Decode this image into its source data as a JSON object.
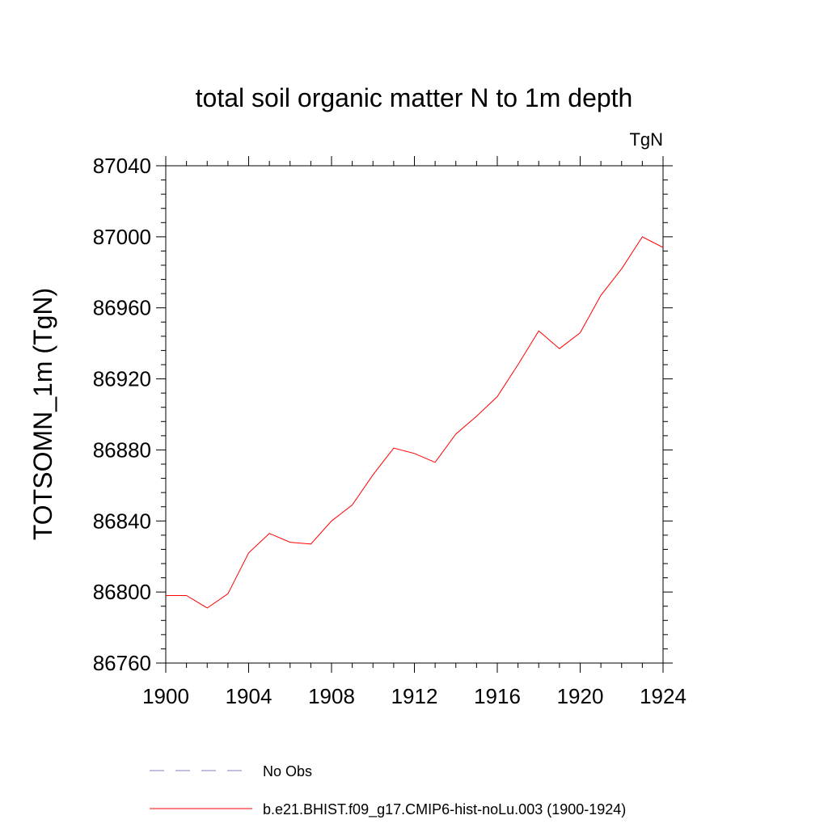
{
  "chart_data": {
    "type": "line",
    "title": "total soil organic matter N to 1m depth",
    "units_label": "TgN",
    "ylabel": "TOTSOMN_1m  (TgN)",
    "xlabel": "",
    "xlim": [
      1900,
      1924
    ],
    "ylim": [
      86760,
      87040
    ],
    "x_ticks": [
      1900,
      1904,
      1908,
      1912,
      1916,
      1920,
      1924
    ],
    "y_ticks": [
      86760,
      86800,
      86840,
      86880,
      86920,
      86960,
      87000,
      87040
    ],
    "x_minor_step": 1,
    "y_minor_step": 8,
    "grid": false,
    "legend_position": "bottom",
    "series": [
      {
        "name": "b.e21.BHIST.f09_g17.CMIP6-hist-noLu.003 (1900-1924)",
        "color": "#ff0000",
        "style": "solid",
        "x": [
          1900,
          1901,
          1902,
          1903,
          1904,
          1905,
          1906,
          1907,
          1908,
          1909,
          1910,
          1911,
          1912,
          1913,
          1914,
          1915,
          1916,
          1917,
          1918,
          1919,
          1920,
          1921,
          1922,
          1923,
          1924
        ],
        "values": [
          86798,
          86798,
          86791,
          86799,
          86822,
          86833,
          86828,
          86827,
          86840,
          86849,
          86866,
          86881,
          86878,
          86873,
          86889,
          86899,
          86910,
          86928,
          86947,
          86937,
          86946,
          86967,
          86982,
          87000,
          86994
        ]
      }
    ],
    "legend": [
      {
        "label": "No Obs",
        "color": "#8080c0",
        "style": "dashed"
      },
      {
        "label": "b.e21.BHIST.f09_g17.CMIP6-hist-noLu.003 (1900-1924)",
        "color": "#ff0000",
        "style": "solid"
      }
    ]
  }
}
